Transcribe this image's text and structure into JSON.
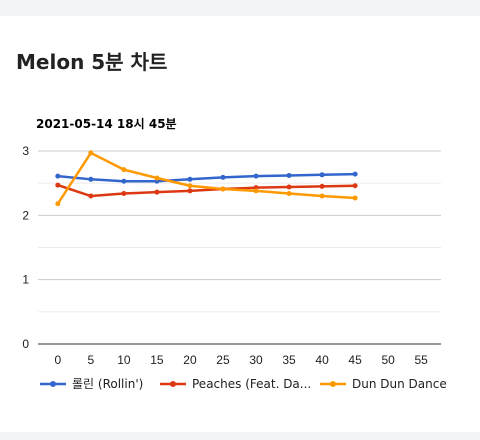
{
  "page": {
    "title": "Melon 5분 차트"
  },
  "chart_data": {
    "type": "line",
    "title": "2021-05-14 18시 45분",
    "xlabel": "",
    "ylabel": "",
    "x": [
      0,
      5,
      10,
      15,
      20,
      25,
      30,
      35,
      40,
      45
    ],
    "xticks": [
      0,
      5,
      10,
      15,
      20,
      25,
      30,
      35,
      40,
      45,
      50,
      55
    ],
    "xlim": [
      -3,
      58
    ],
    "yticks": [
      0,
      1,
      2,
      3
    ],
    "ylim": [
      0,
      3
    ],
    "grid": true,
    "legend": "bottom",
    "series": [
      {
        "name": "롤린 (Rollin')",
        "color": "#3366cc",
        "values": [
          2.61,
          2.56,
          2.53,
          2.53,
          2.56,
          2.59,
          2.61,
          2.62,
          2.63,
          2.64
        ]
      },
      {
        "name": "Peaches (Feat. Da...",
        "color": "#dc3912",
        "values": [
          2.47,
          2.3,
          2.34,
          2.36,
          2.38,
          2.41,
          2.43,
          2.44,
          2.45,
          2.46
        ]
      },
      {
        "name": "Dun Dun Dance",
        "color": "#ff9900",
        "values": [
          2.18,
          2.97,
          2.71,
          2.58,
          2.46,
          2.41,
          2.38,
          2.34,
          2.3,
          2.27
        ]
      }
    ]
  }
}
